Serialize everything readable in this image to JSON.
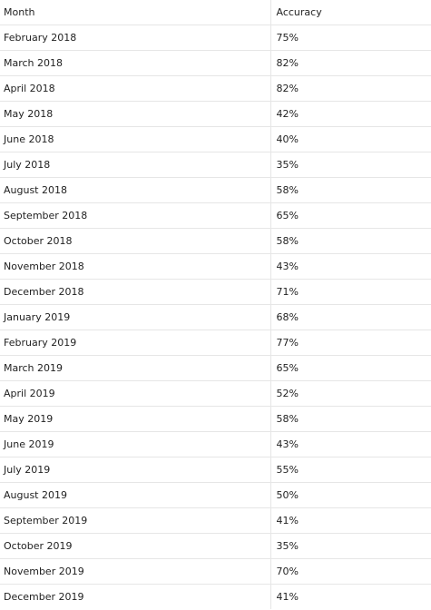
{
  "table": {
    "headers": [
      "Month",
      "Accuracy"
    ],
    "rows": [
      [
        "February 2018",
        "75%"
      ],
      [
        "March 2018",
        "82%"
      ],
      [
        "April 2018",
        "82%"
      ],
      [
        "May 2018",
        "42%"
      ],
      [
        "June 2018",
        "40%"
      ],
      [
        "July 2018",
        "35%"
      ],
      [
        "August 2018",
        "58%"
      ],
      [
        "September 2018",
        "65%"
      ],
      [
        "October 2018",
        "58%"
      ],
      [
        "November 2018",
        "43%"
      ],
      [
        "December 2018",
        "71%"
      ],
      [
        "January 2019",
        "68%"
      ],
      [
        "February 2019",
        "77%"
      ],
      [
        "March 2019",
        "65%"
      ],
      [
        "April 2019",
        "52%"
      ],
      [
        "May 2019",
        "58%"
      ],
      [
        "June 2019",
        "43%"
      ],
      [
        "July 2019",
        "55%"
      ],
      [
        "August 2019",
        "50%"
      ],
      [
        "September 2019",
        "41%"
      ],
      [
        "October 2019",
        "35%"
      ],
      [
        "November 2019",
        "70%"
      ],
      [
        "December 2019",
        "41%"
      ]
    ]
  }
}
